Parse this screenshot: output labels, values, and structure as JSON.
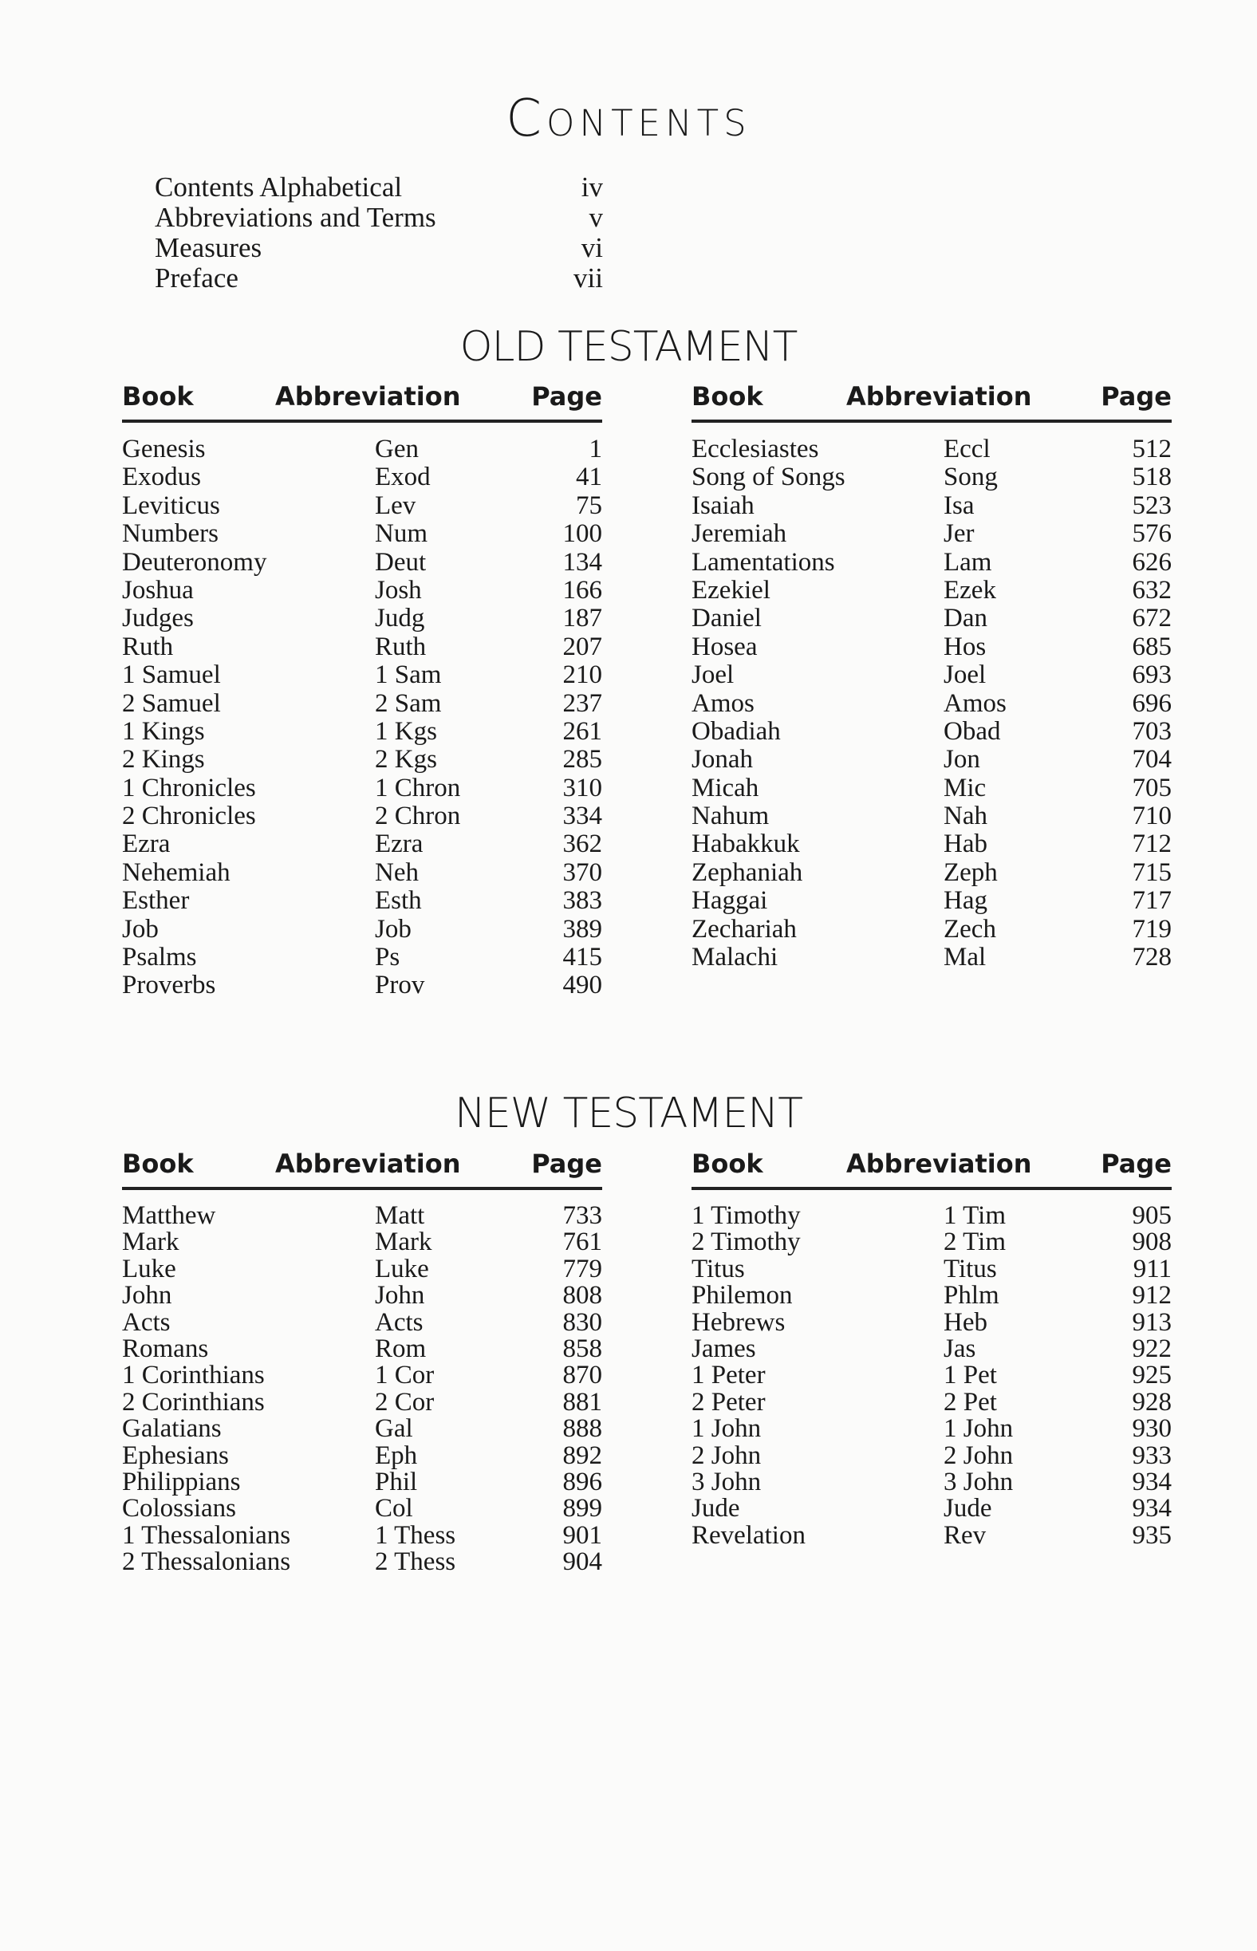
{
  "title": "Contents",
  "front_matter": [
    {
      "label": "Contents Alphabetical",
      "page": "iv"
    },
    {
      "label": "Abbreviations and Terms",
      "page": "v"
    },
    {
      "label": "Measures",
      "page": "vi"
    },
    {
      "label": "Preface",
      "page": "vii"
    }
  ],
  "headers": {
    "book": "Book",
    "abbreviation": "Abbreviation",
    "page": "Page"
  },
  "old_testament": {
    "heading": "OLD TESTAMENT",
    "left": [
      [
        "Genesis",
        "Gen",
        "1"
      ],
      [
        "Exodus",
        "Exod",
        "41"
      ],
      [
        "Leviticus",
        "Lev",
        "75"
      ],
      [
        "Numbers",
        "Num",
        "100"
      ],
      [
        "Deuteronomy",
        "Deut",
        "134"
      ],
      [
        "Joshua",
        "Josh",
        "166"
      ],
      [
        "Judges",
        "Judg",
        "187"
      ],
      [
        "Ruth",
        "Ruth",
        "207"
      ],
      [
        "1 Samuel",
        "1 Sam",
        "210"
      ],
      [
        "2 Samuel",
        "2 Sam",
        "237"
      ],
      [
        "1 Kings",
        "1 Kgs",
        "261"
      ],
      [
        "2 Kings",
        "2 Kgs",
        "285"
      ],
      [
        "1 Chronicles",
        "1 Chron",
        "310"
      ],
      [
        "2 Chronicles",
        "2 Chron",
        "334"
      ],
      [
        "Ezra",
        "Ezra",
        "362"
      ],
      [
        "Nehemiah",
        "Neh",
        "370"
      ],
      [
        "Esther",
        "Esth",
        "383"
      ],
      [
        "Job",
        "Job",
        "389"
      ],
      [
        "Psalms",
        "Ps",
        "415"
      ],
      [
        "Proverbs",
        "Prov",
        "490"
      ]
    ],
    "right": [
      [
        "Ecclesiastes",
        "Eccl",
        "512"
      ],
      [
        "Song of Songs",
        "Song",
        "518"
      ],
      [
        "Isaiah",
        "Isa",
        "523"
      ],
      [
        "Jeremiah",
        "Jer",
        "576"
      ],
      [
        "Lamentations",
        "Lam",
        "626"
      ],
      [
        "Ezekiel",
        "Ezek",
        "632"
      ],
      [
        "Daniel",
        "Dan",
        "672"
      ],
      [
        "Hosea",
        "Hos",
        "685"
      ],
      [
        "Joel",
        "Joel",
        "693"
      ],
      [
        "Amos",
        "Amos",
        "696"
      ],
      [
        "Obadiah",
        "Obad",
        "703"
      ],
      [
        "Jonah",
        "Jon",
        "704"
      ],
      [
        "Micah",
        "Mic",
        "705"
      ],
      [
        "Nahum",
        "Nah",
        "710"
      ],
      [
        "Habakkuk",
        "Hab",
        "712"
      ],
      [
        "Zephaniah",
        "Zeph",
        "715"
      ],
      [
        "Haggai",
        "Hag",
        "717"
      ],
      [
        "Zechariah",
        "Zech",
        "719"
      ],
      [
        "Malachi",
        "Mal",
        "728"
      ]
    ]
  },
  "new_testament": {
    "heading": "NEW TESTAMENT",
    "left": [
      [
        "Matthew",
        "Matt",
        "733"
      ],
      [
        "Mark",
        "Mark",
        "761"
      ],
      [
        "Luke",
        "Luke",
        "779"
      ],
      [
        "John",
        "John",
        "808"
      ],
      [
        "Acts",
        "Acts",
        "830"
      ],
      [
        "Romans",
        "Rom",
        "858"
      ],
      [
        "1 Corinthians",
        "1 Cor",
        "870"
      ],
      [
        "2 Corinthians",
        "2 Cor",
        "881"
      ],
      [
        "Galatians",
        "Gal",
        "888"
      ],
      [
        "Ephesians",
        "Eph",
        "892"
      ],
      [
        "Philippians",
        "Phil",
        "896"
      ],
      [
        "Colossians",
        "Col",
        "899"
      ],
      [
        "1 Thessalonians",
        "1 Thess",
        "901"
      ],
      [
        "2 Thessalonians",
        "2 Thess",
        "904"
      ]
    ],
    "right": [
      [
        "1 Timothy",
        "1 Tim",
        "905"
      ],
      [
        "2 Timothy",
        "2 Tim",
        "908"
      ],
      [
        "Titus",
        "Titus",
        "911"
      ],
      [
        "Philemon",
        "Phlm",
        "912"
      ],
      [
        "Hebrews",
        "Heb",
        "913"
      ],
      [
        "James",
        "Jas",
        "922"
      ],
      [
        "1 Peter",
        "1 Pet",
        "925"
      ],
      [
        "2 Peter",
        "2 Pet",
        "928"
      ],
      [
        "1 John",
        "1 John",
        "930"
      ],
      [
        "2 John",
        "2 John",
        "933"
      ],
      [
        "3 John",
        "3 John",
        "934"
      ],
      [
        "Jude",
        "Jude",
        "934"
      ],
      [
        "Revelation",
        "Rev",
        "935"
      ]
    ]
  }
}
